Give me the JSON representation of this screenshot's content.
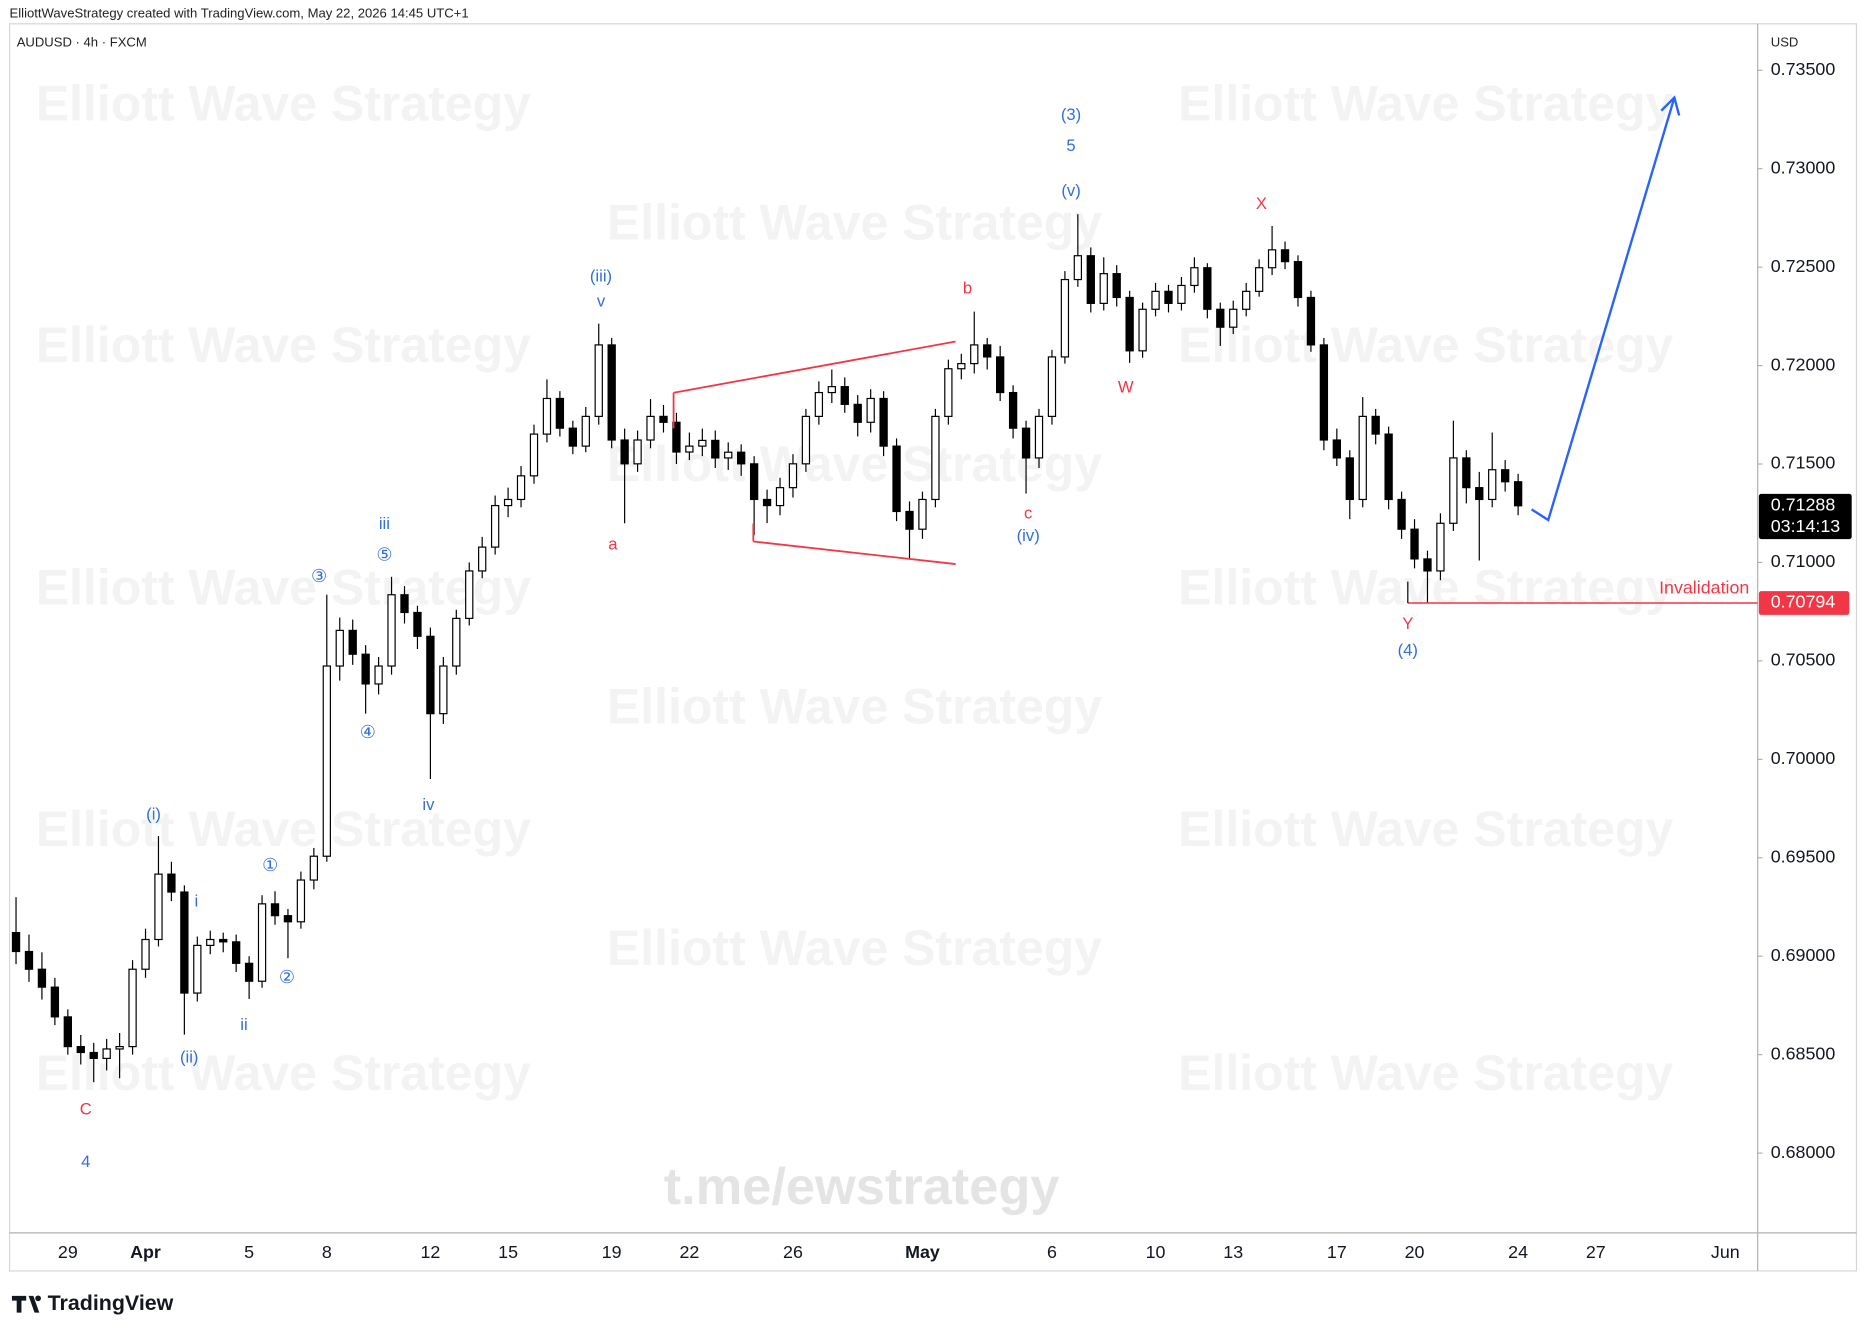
{
  "header": "ElliottWaveStrategy created with TradingView.com, May 22, 2026 14:45 UTC+1",
  "symbol": "AUDUSD · 4h · FXCM",
  "watermark": "Elliott Wave Strategy",
  "link": "t.me/ewstrategy",
  "brand": "TradingView",
  "chart_data": {
    "type": "candlestick",
    "currency": "USD",
    "up_color": "#ffffff",
    "down_color": "#000000",
    "categories": [
      null,
      null,
      null,
      null,
      "29",
      null,
      null,
      null,
      null,
      null,
      "Apr",
      null,
      null,
      null,
      null,
      null,
      null,
      null,
      "5",
      null,
      null,
      null,
      null,
      null,
      "8",
      null,
      null,
      null,
      null,
      null,
      null,
      null,
      "12",
      null,
      null,
      null,
      null,
      null,
      "15",
      null,
      null,
      null,
      null,
      null,
      null,
      null,
      "19",
      null,
      null,
      null,
      null,
      null,
      "22",
      null,
      null,
      null,
      null,
      null,
      null,
      null,
      "26",
      null,
      null,
      null,
      null,
      null,
      null,
      null,
      null,
      null,
      "May",
      null,
      null,
      null,
      null,
      null,
      null,
      null,
      null,
      null,
      "6",
      null,
      null,
      null,
      null,
      null,
      null,
      null,
      "10",
      null,
      null,
      null,
      null,
      null,
      "13",
      null,
      null,
      null,
      null,
      null,
      null,
      null,
      "17",
      null,
      null,
      null,
      null,
      null,
      "20",
      null,
      null,
      null,
      null,
      null,
      null,
      null,
      "24",
      null,
      null,
      null,
      null,
      null,
      "27",
      null,
      null,
      null,
      null,
      null,
      null,
      null,
      null,
      null,
      "Jun",
      null,
      null
    ],
    "open": [
      0.6912,
      0.69024,
      0.68934,
      0.68843,
      0.68692,
      0.68541,
      0.68511,
      0.68481,
      0.68529,
      0.68541,
      0.68934,
      0.69085,
      0.69417,
      0.69326,
      0.68813,
      0.69055,
      0.69085,
      0.69073,
      0.68964,
      0.68873,
      0.69266,
      0.69206,
      0.69175,
      0.69387,
      0.69508,
      0.70474,
      0.70655,
      0.70534,
      0.70383,
      0.70474,
      0.70836,
      0.70746,
      0.70625,
      0.70232,
      0.70474,
      0.70716,
      0.70957,
      0.71078,
      0.71289,
      0.7132,
      0.7144,
      0.71652,
      0.71833,
      0.71682,
      0.71591,
      0.71742,
      0.72105,
      0.71622,
      0.71501,
      0.71622,
      0.71742,
      0.71712,
      0.71561,
      0.71591,
      0.7162,
      0.71531,
      0.7156,
      0.71501,
      0.7132,
      0.71289,
      0.7138,
      0.71501,
      0.71742,
      0.71863,
      0.71893,
      0.71803,
      0.71712,
      0.71833,
      0.71591,
      0.71259,
      0.71169,
      0.7132,
      0.71742,
      0.71984,
      0.7201,
      0.72105,
      0.72044,
      0.71863,
      0.71682,
      0.71531,
      0.71742,
      0.72044,
      0.72437,
      0.72558,
      0.72316,
      0.72467,
      0.72346,
      0.72075,
      0.72286,
      0.72377,
      0.72316,
      0.72407,
      0.72497,
      0.72286,
      0.72195,
      0.72286,
      0.72377,
      0.72497,
      0.72588,
      0.72528,
      0.72346,
      0.72105,
      0.71622,
      0.71531,
      0.7132,
      0.71742,
      0.71652,
      0.7132,
      0.71169,
      0.71018,
      0.70957,
      0.71199,
      0.71531,
      0.7138,
      0.7132,
      0.71471,
      0.7141,
      null,
      null,
      null,
      null,
      null,
      null,
      null,
      null,
      null,
      null,
      null,
      null,
      null,
      null,
      null,
      null,
      null,
      null
    ],
    "high": [
      0.693,
      0.6911,
      0.6902,
      0.6889,
      0.6873,
      0.686,
      0.6856,
      0.6858,
      0.6861,
      0.6898,
      0.6914,
      0.6961,
      0.6948,
      0.6936,
      0.691,
      0.6913,
      0.6912,
      0.6911,
      0.69,
      0.6931,
      0.6933,
      0.6924,
      0.6943,
      0.6955,
      0.70836,
      0.7072,
      0.7071,
      0.7058,
      0.7052,
      0.70927,
      0.7088,
      0.7078,
      0.7067,
      0.7052,
      0.7076,
      0.71,
      0.7113,
      0.7134,
      0.7138,
      0.7149,
      0.717,
      0.7193,
      0.7187,
      0.7172,
      0.7179,
      0.72213,
      0.7214,
      0.7168,
      0.7167,
      0.7183,
      0.718,
      0.7176,
      0.7166,
      0.7168,
      0.7167,
      0.7161,
      0.716,
      0.7154,
      0.7137,
      0.7143,
      0.7155,
      0.7178,
      0.7192,
      0.7198,
      0.7194,
      0.7185,
      0.7188,
      0.7187,
      0.7163,
      0.7131,
      0.7136,
      0.7178,
      0.7203,
      0.7206,
      0.72274,
      0.7214,
      0.721,
      0.719,
      0.7172,
      0.7178,
      0.7208,
      0.7248,
      0.72769,
      0.726,
      0.7255,
      0.7251,
      0.7238,
      0.7232,
      0.7242,
      0.7241,
      0.7245,
      0.7255,
      0.7252,
      0.7232,
      0.7233,
      0.7242,
      0.7254,
      0.72709,
      0.7263,
      0.7256,
      0.7238,
      0.7214,
      0.7168,
      0.7157,
      0.7184,
      0.7178,
      0.7169,
      0.7136,
      0.7122,
      0.7106,
      0.7125,
      0.7172,
      0.7157,
      0.7146,
      0.7166,
      0.7152,
      0.7145,
      null,
      null,
      null,
      null,
      null,
      null,
      null,
      null,
      null,
      null,
      null,
      null,
      null,
      null,
      null,
      null,
      null,
      null
    ],
    "low": [
      0.6896,
      0.6887,
      0.6878,
      0.6865,
      0.685,
      0.6845,
      0.6836,
      0.6842,
      0.6838,
      0.685,
      0.6889,
      0.6905,
      0.6928,
      0.68602,
      0.6877,
      0.6901,
      0.6902,
      0.6892,
      0.68783,
      0.6884,
      0.6916,
      0.6899,
      0.6914,
      0.6934,
      0.6948,
      0.704,
      0.7048,
      0.70232,
      0.7033,
      0.7043,
      0.7069,
      0.7056,
      0.699,
      0.7018,
      0.7043,
      0.7068,
      0.7092,
      0.7104,
      0.7123,
      0.7128,
      0.714,
      0.7161,
      0.7164,
      0.7155,
      0.7156,
      0.717,
      0.7158,
      0.71199,
      0.7146,
      0.7158,
      0.7166,
      0.715,
      0.7152,
      0.7154,
      0.7148,
      0.7147,
      0.7144,
      0.71138,
      0.712,
      0.7124,
      0.7133,
      0.7146,
      0.717,
      0.7181,
      0.7176,
      0.7164,
      0.7166,
      0.7154,
      0.7121,
      0.71018,
      0.7112,
      0.7128,
      0.717,
      0.7193,
      0.7196,
      0.7198,
      0.7182,
      0.7163,
      0.7135,
      0.7148,
      0.717,
      0.7201,
      0.724,
      0.7227,
      0.7228,
      0.723,
      0.72014,
      0.7204,
      0.7225,
      0.7227,
      0.7228,
      0.7237,
      0.7224,
      0.721,
      0.7216,
      0.7225,
      0.7235,
      0.7246,
      0.7249,
      0.723,
      0.7207,
      0.7157,
      0.7149,
      0.7122,
      0.7128,
      0.716,
      0.7127,
      0.7112,
      0.7097,
      0.70794,
      0.7091,
      0.7116,
      0.713,
      0.7101,
      0.7128,
      0.7136,
      0.7124,
      null,
      null,
      null,
      null,
      null,
      null,
      null,
      null,
      null,
      null,
      null,
      null,
      null,
      null,
      null,
      null,
      null,
      null
    ],
    "close": [
      0.69024,
      0.68934,
      0.68843,
      0.68692,
      0.68541,
      0.68511,
      0.68481,
      0.68529,
      0.68541,
      0.68934,
      0.69085,
      0.69417,
      0.69326,
      0.68813,
      0.69055,
      0.69085,
      0.69073,
      0.68964,
      0.68873,
      0.69266,
      0.69206,
      0.69175,
      0.69387,
      0.69508,
      0.70474,
      0.70655,
      0.70534,
      0.70383,
      0.70474,
      0.70836,
      0.70746,
      0.70625,
      0.70232,
      0.70474,
      0.70716,
      0.70957,
      0.71078,
      0.71289,
      0.7132,
      0.7144,
      0.71652,
      0.71833,
      0.71682,
      0.71591,
      0.71742,
      0.72105,
      0.71622,
      0.71501,
      0.71622,
      0.71742,
      0.71712,
      0.71561,
      0.71591,
      0.7162,
      0.71531,
      0.7156,
      0.71501,
      0.7132,
      0.71289,
      0.7138,
      0.71501,
      0.71742,
      0.71863,
      0.71893,
      0.71803,
      0.71712,
      0.71833,
      0.71591,
      0.71259,
      0.71169,
      0.7132,
      0.71742,
      0.71984,
      0.7201,
      0.72105,
      0.72044,
      0.71863,
      0.71682,
      0.71531,
      0.71742,
      0.72044,
      0.72437,
      0.72558,
      0.72316,
      0.72467,
      0.72346,
      0.72075,
      0.72286,
      0.72377,
      0.72316,
      0.72407,
      0.72497,
      0.72286,
      0.72195,
      0.72286,
      0.72377,
      0.72497,
      0.72588,
      0.72528,
      0.72346,
      0.72105,
      0.71622,
      0.71531,
      0.7132,
      0.71742,
      0.71652,
      0.7132,
      0.71169,
      0.71018,
      0.70957,
      0.71199,
      0.71531,
      0.7138,
      0.7132,
      0.71471,
      0.7141,
      0.71288,
      null,
      null,
      null,
      null,
      null,
      null,
      null,
      null,
      null,
      null,
      null,
      null,
      null,
      null,
      null,
      null,
      null,
      null
    ],
    "ylim": [
      0.67595,
      0.73736
    ],
    "yticks": [
      {
        "value": 0.68,
        "label": "0.68000"
      },
      {
        "value": 0.685,
        "label": "0.68500"
      },
      {
        "value": 0.69,
        "label": "0.69000"
      },
      {
        "value": 0.695,
        "label": "0.69500"
      },
      {
        "value": 0.7,
        "label": "0.70000"
      },
      {
        "value": 0.705,
        "label": "0.70500"
      },
      {
        "value": 0.71,
        "label": "0.71000"
      },
      {
        "value": 0.715,
        "label": "0.71500"
      },
      {
        "value": 0.72,
        "label": "0.72000"
      },
      {
        "value": 0.725,
        "label": "0.72500"
      },
      {
        "value": 0.73,
        "label": "0.73000"
      },
      {
        "value": 0.735,
        "label": "0.73500"
      }
    ],
    "last_price": {
      "value": 0.71288,
      "label": "0.71288",
      "countdown": "03:14:13"
    },
    "invalidation": {
      "text": "Invalidation",
      "value": 0.70794,
      "label": "0.70794",
      "color": "#f23645"
    },
    "projection_color": "#2962ff",
    "annotations": [
      {
        "text": "C",
        "color": "#f23645"
      },
      {
        "text": "4",
        "color": "#2f6fe0"
      },
      {
        "text": "(i)",
        "color": "#2f6fe0"
      },
      {
        "text": "(ii)",
        "color": "#2f6fe0"
      },
      {
        "text": "i",
        "color": "#2f6fe0"
      },
      {
        "text": "ii",
        "color": "#2f6fe0"
      },
      {
        "text": "①",
        "color": "#2f6fe0"
      },
      {
        "text": "②",
        "color": "#2f6fe0"
      },
      {
        "text": "③",
        "color": "#2f6fe0"
      },
      {
        "text": "④",
        "color": "#2f6fe0"
      },
      {
        "text": "⑤",
        "color": "#2f6fe0"
      },
      {
        "text": "iii",
        "color": "#2f6fe0"
      },
      {
        "text": "iv",
        "color": "#2f6fe0"
      },
      {
        "text": "(iii)",
        "color": "#2f6fe0"
      },
      {
        "text": "v",
        "color": "#2f6fe0"
      },
      {
        "text": "a",
        "color": "#f23645"
      },
      {
        "text": "b",
        "color": "#f23645"
      },
      {
        "text": "c",
        "color": "#f23645"
      },
      {
        "text": "(iv)",
        "color": "#2f6fe0"
      },
      {
        "text": "(3)",
        "color": "#2f6fe0"
      },
      {
        "text": "5",
        "color": "#2f6fe0"
      },
      {
        "text": "(v)",
        "color": "#2f6fe0"
      },
      {
        "text": "W",
        "color": "#f23645"
      },
      {
        "text": "X",
        "color": "#f23645"
      },
      {
        "text": "Y",
        "color": "#f23645"
      },
      {
        "text": "(4)",
        "color": "#2f6fe0"
      }
    ]
  }
}
